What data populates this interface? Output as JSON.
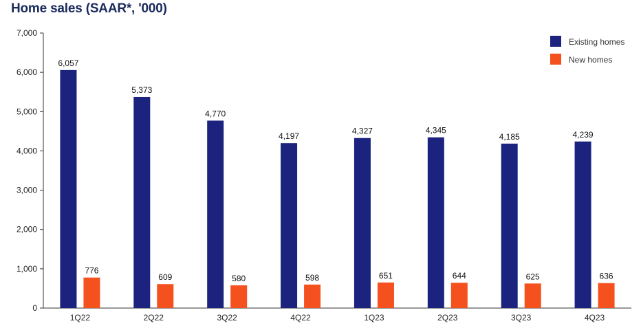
{
  "title": "Home sales (SAAR*, '000)",
  "colors": {
    "existing": "#1b237e",
    "new": "#f4511e",
    "axis": "#333333",
    "grid": "#dddddd"
  },
  "chart_data": {
    "type": "bar",
    "title": "Home sales (SAAR*, '000)",
    "xlabel": "",
    "ylabel": "",
    "ylim": [
      0,
      7000
    ],
    "yticks": [
      0,
      1000,
      2000,
      3000,
      4000,
      5000,
      6000,
      7000
    ],
    "ytick_labels": [
      "0",
      "1,000",
      "2,000",
      "3,000",
      "4,000",
      "5,000",
      "6,000",
      "7,000"
    ],
    "grid": false,
    "legend": "top-right",
    "categories": [
      "1Q22",
      "2Q22",
      "3Q22",
      "4Q22",
      "1Q23",
      "2Q23",
      "3Q23",
      "4Q23"
    ],
    "series": [
      {
        "name": "Existing homes",
        "color": "#1b237e",
        "values": [
          6057,
          5373,
          4770,
          4197,
          4327,
          4345,
          4185,
          4239
        ],
        "labels": [
          "6,057",
          "5,373",
          "4,770",
          "4,197",
          "4,327",
          "4,345",
          "4,185",
          "4,239"
        ]
      },
      {
        "name": "New homes",
        "color": "#f4511e",
        "values": [
          776,
          609,
          580,
          598,
          651,
          644,
          625,
          636
        ],
        "labels": [
          "776",
          "609",
          "580",
          "598",
          "651",
          "644",
          "625",
          "636"
        ]
      }
    ]
  }
}
